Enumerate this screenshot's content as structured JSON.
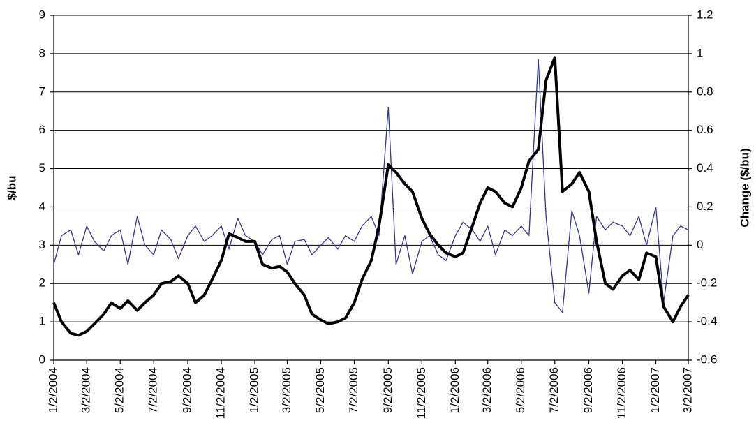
{
  "chart_data": {
    "type": "line",
    "y_label": "$/bu",
    "y2_label": "Change ($/bu)",
    "x": [
      "1/2/2004",
      "1/16/2004",
      "2/2/2004",
      "2/16/2004",
      "3/2/2004",
      "3/16/2004",
      "4/2/2004",
      "4/16/2004",
      "5/2/2004",
      "5/16/2004",
      "6/2/2004",
      "6/16/2004",
      "7/2/2004",
      "7/16/2004",
      "8/2/2004",
      "8/16/2004",
      "9/2/2004",
      "9/16/2004",
      "10/2/2004",
      "10/16/2004",
      "11/2/2004",
      "11/16/2004",
      "12/2/2004",
      "12/16/2004",
      "1/2/2005",
      "1/16/2005",
      "2/2/2005",
      "2/16/2005",
      "3/2/2005",
      "3/16/2005",
      "4/2/2005",
      "4/16/2005",
      "5/2/2005",
      "5/16/2005",
      "6/2/2005",
      "6/16/2005",
      "7/2/2005",
      "7/16/2005",
      "8/2/2005",
      "8/16/2005",
      "9/2/2005",
      "9/16/2005",
      "10/2/2005",
      "10/16/2005",
      "11/2/2005",
      "11/16/2005",
      "12/2/2005",
      "12/16/2005",
      "1/2/2006",
      "1/16/2006",
      "2/2/2006",
      "2/16/2006",
      "3/2/2006",
      "3/16/2006",
      "4/2/2006",
      "4/16/2006",
      "5/2/2006",
      "5/16/2006",
      "6/2/2006",
      "6/16/2006",
      "7/2/2006",
      "7/16/2006",
      "8/2/2006",
      "8/16/2006",
      "9/2/2006",
      "9/16/2006",
      "10/2/2006",
      "10/16/2006",
      "11/2/2006",
      "11/16/2006",
      "12/2/2006",
      "12/16/2006",
      "1/2/2007",
      "1/16/2007",
      "2/2/2007",
      "2/16/2007",
      "3/2/2007"
    ],
    "series": [
      {
        "color": "#000000",
        "values": [
          1.5,
          1.0,
          0.7,
          0.65,
          0.75,
          0.95,
          1.2,
          1.5,
          1.35,
          1.55,
          1.3,
          1.5,
          1.7,
          2.0,
          2.05,
          2.2,
          2.0,
          1.5,
          1.7,
          2.1,
          2.6,
          3.3,
          3.2,
          3.1,
          3.1,
          2.5,
          2.4,
          2.45,
          2.3,
          2.0,
          1.7,
          1.2,
          1.05,
          0.95,
          1.0,
          1.1,
          1.5,
          2.1,
          2.6,
          3.5,
          5.1,
          4.9,
          4.6,
          4.4,
          3.7,
          3.3,
          3.0,
          2.8,
          2.7,
          2.8,
          3.5,
          4.1,
          4.5,
          4.4,
          4.1,
          4.0,
          4.5,
          5.2,
          5.5,
          7.3,
          7.9,
          4.4,
          4.6,
          4.9,
          4.4,
          3.1,
          2.0,
          1.85,
          2.2,
          2.35,
          2.1,
          2.8,
          2.7,
          1.4,
          1.0,
          1.4,
          1.7
        ]
      },
      {
        "color": "#333399",
        "axis": "y2",
        "values": [
          -0.1,
          0.05,
          0.08,
          -0.05,
          0.1,
          0.02,
          -0.03,
          0.05,
          0.08,
          -0.1,
          0.15,
          0.0,
          -0.05,
          0.08,
          0.03,
          -0.07,
          0.05,
          0.1,
          0.02,
          0.05,
          0.1,
          -0.02,
          0.14,
          0.05,
          0.02,
          -0.05,
          0.03,
          0.05,
          -0.1,
          0.02,
          0.03,
          -0.05,
          0.0,
          0.04,
          -0.02,
          0.05,
          0.02,
          0.1,
          0.15,
          0.05,
          0.72,
          -0.1,
          0.05,
          -0.15,
          0.02,
          0.05,
          -0.05,
          -0.08,
          0.05,
          0.12,
          0.08,
          0.02,
          0.1,
          -0.05,
          0.08,
          0.05,
          0.1,
          0.05,
          0.97,
          0.15,
          -0.3,
          -0.35,
          0.18,
          0.05,
          -0.25,
          0.15,
          0.08,
          0.12,
          0.1,
          0.05,
          0.15,
          0.0,
          0.2,
          -0.3,
          0.05,
          0.1,
          0.08
        ]
      }
    ],
    "xticks": [
      "1/2/2004",
      "3/2/2004",
      "5/2/2004",
      "7/2/2004",
      "9/2/2004",
      "11/2/2004",
      "1/2/2005",
      "3/2/2005",
      "5/2/2005",
      "7/2/2005",
      "9/2/2005",
      "11/2/2005",
      "1/2/2006",
      "3/2/2006",
      "5/2/2006",
      "7/2/2006",
      "9/2/2006",
      "11/2/2006",
      "1/2/2007",
      "3/2/2007"
    ],
    "ylim": [
      0,
      9
    ],
    "yticks": [
      0,
      1,
      2,
      3,
      4,
      5,
      6,
      7,
      8,
      9
    ],
    "y2lim": [
      -0.6,
      1.2
    ],
    "y2ticks": [
      -0.6,
      -0.4,
      -0.2,
      0,
      0.2,
      0.4,
      0.6,
      0.8,
      1,
      1.2
    ],
    "grid": true
  }
}
